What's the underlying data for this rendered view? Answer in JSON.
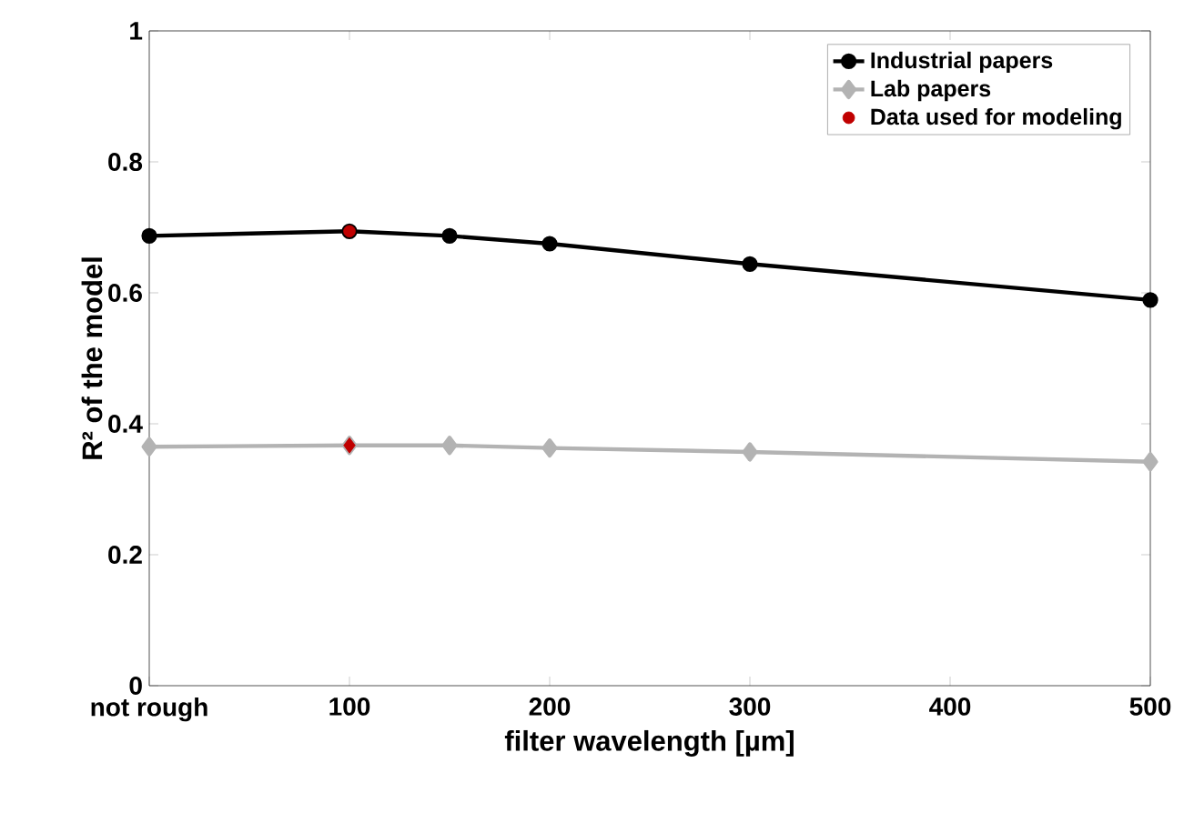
{
  "chart_data": {
    "type": "line",
    "xlabel": "filter wavelength [µm]",
    "ylabel": "R² of the model",
    "xlim": [
      0,
      500
    ],
    "ylim": [
      0,
      1
    ],
    "xticks": [
      {
        "value": 0,
        "label": "not rough"
      },
      100,
      200,
      300,
      400,
      500
    ],
    "yticks": [
      0,
      0.2,
      0.4,
      0.6,
      0.8,
      1
    ],
    "grid": false,
    "legend": "top right",
    "series": [
      {
        "name": "Industrial papers",
        "marker": "circle",
        "color": "#000000",
        "x": [
          0,
          100,
          150,
          200,
          300,
          500
        ],
        "values": [
          0.687,
          0.694,
          0.687,
          0.675,
          0.644,
          0.589
        ]
      },
      {
        "name": "Lab papers",
        "marker": "diamond",
        "color": "#b3b3b3",
        "x": [
          0,
          100,
          150,
          200,
          300,
          500
        ],
        "values": [
          0.365,
          0.367,
          0.367,
          0.363,
          0.357,
          0.342
        ]
      },
      {
        "name": "Data used for modeling",
        "type": "scatter",
        "marker": "circle",
        "color": "#c00000",
        "x": [
          100
        ],
        "values": [
          0.694
        ]
      },
      {
        "type": "scatter",
        "marker": "diamond",
        "color": "#c00000",
        "x": [
          100
        ],
        "values": [
          0.367
        ]
      }
    ]
  }
}
